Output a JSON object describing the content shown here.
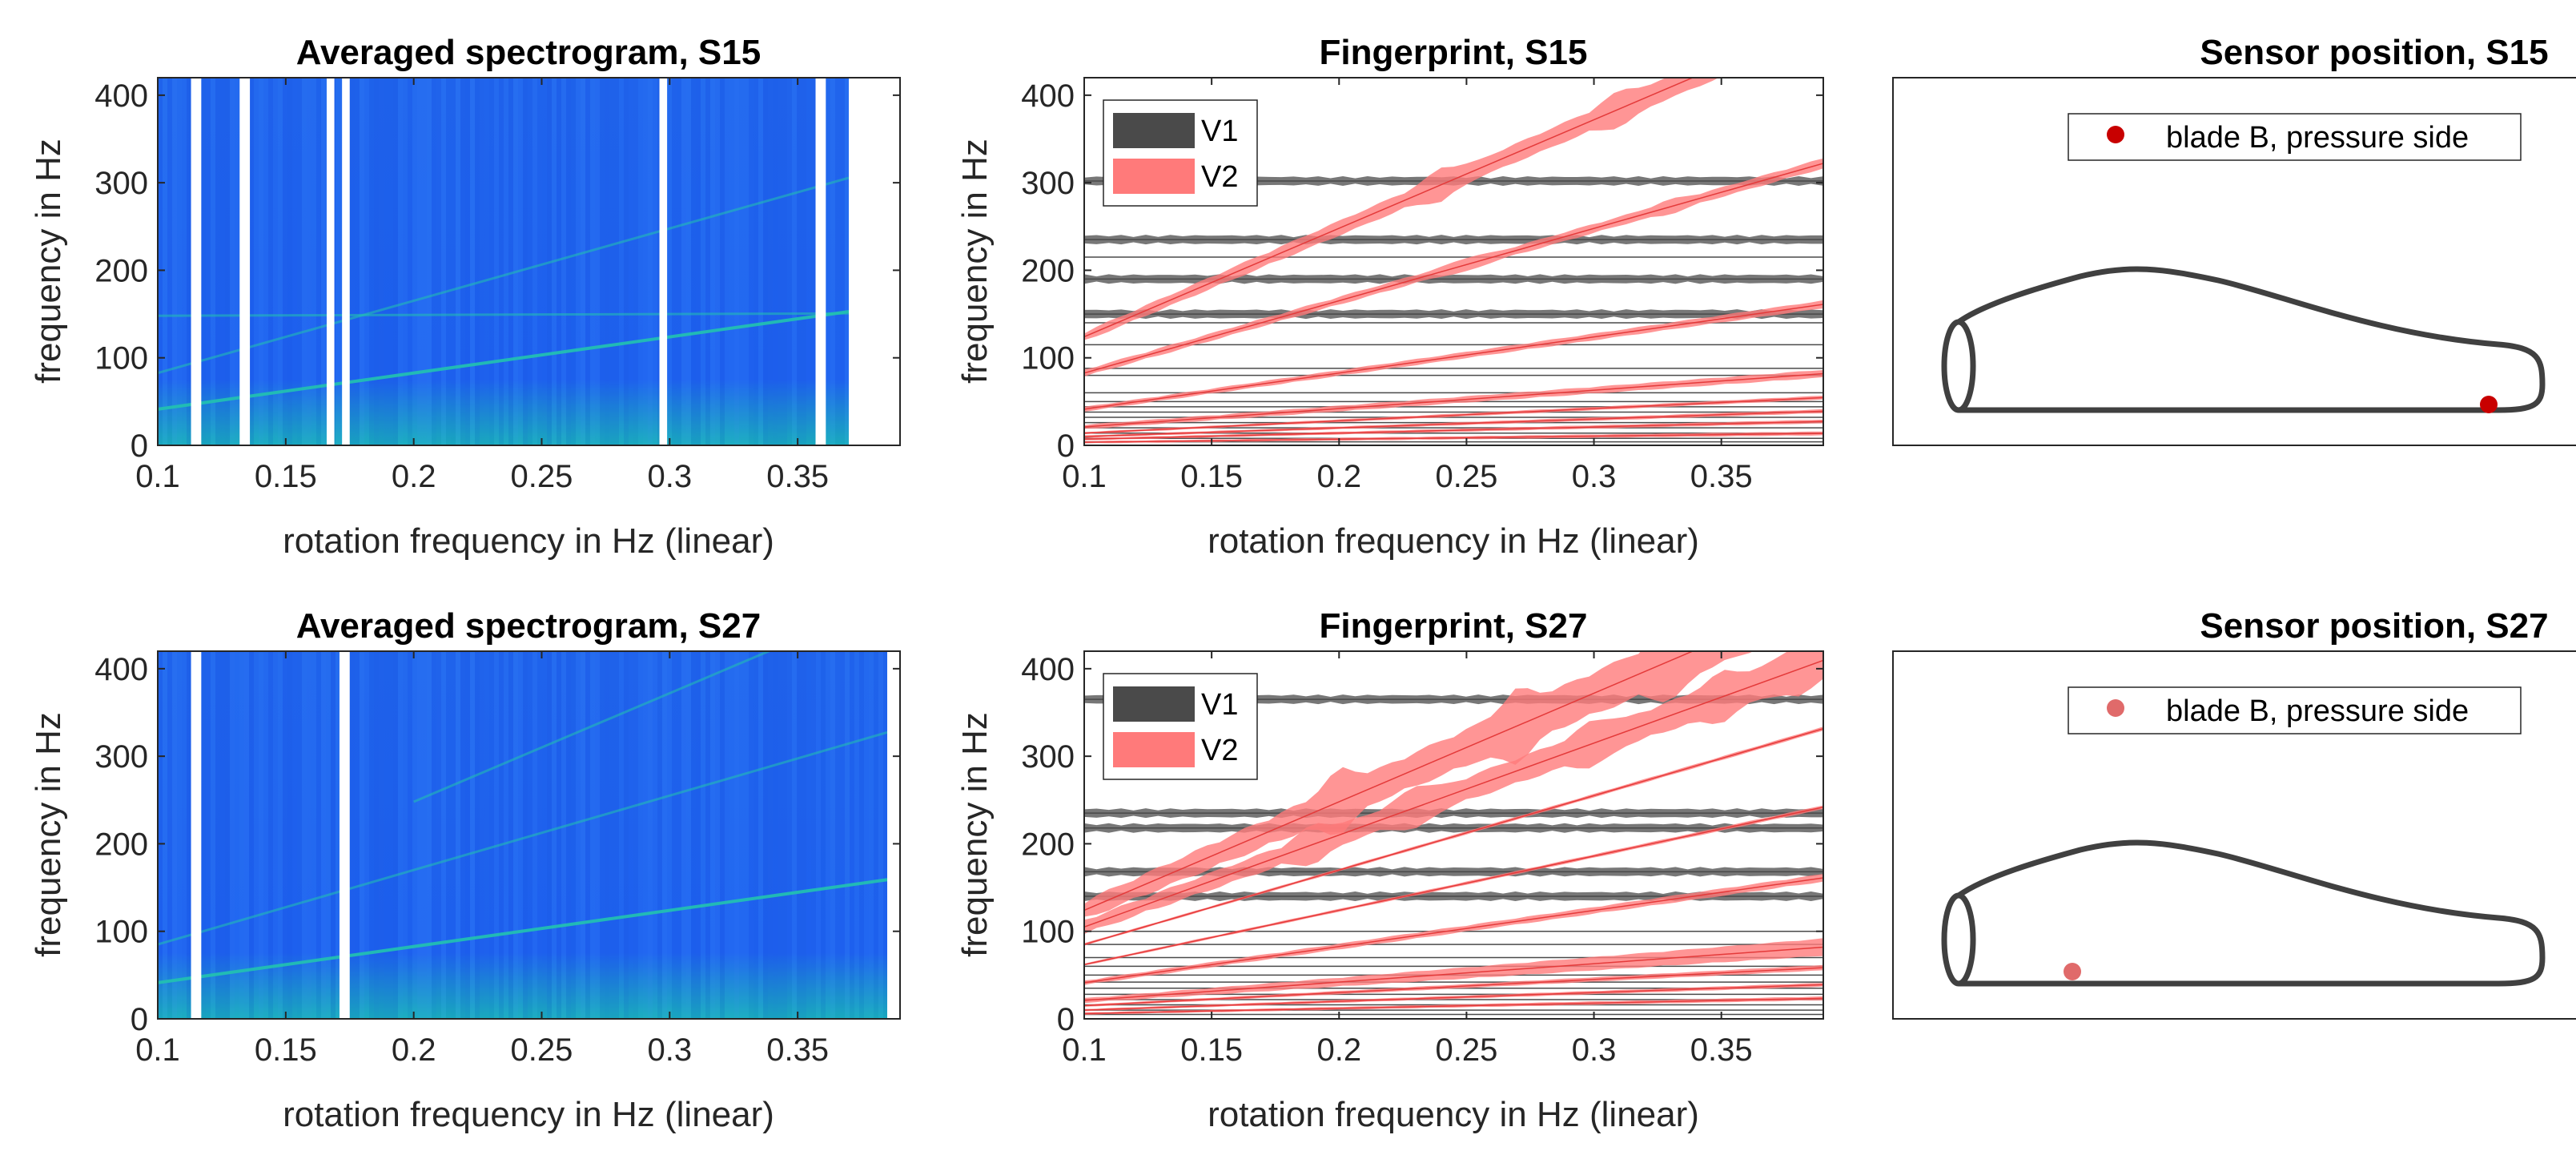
{
  "figure": {
    "colors": {
      "spec_bg": "#1f63f0",
      "spec_bg_bottom": "#1aa2c8",
      "spec_line": "#22c3b0",
      "gap": "#ffffff",
      "v1": "#4a4a4a",
      "v2": "#ff7a7a",
      "v2_line": "#e43a3a",
      "sensor_s15": "#c80000",
      "sensor_s27": "#e06a6a",
      "outline": "#404040"
    }
  },
  "chart_data": [
    {
      "id": "spec_s15",
      "type": "heatmap",
      "title": "Averaged spectrogram, S15",
      "xlabel": "rotation frequency in Hz (linear)",
      "ylabel": "frequency in Hz",
      "xlim": [
        0.1,
        0.39
      ],
      "ylim": [
        0,
        420
      ],
      "xticks": [
        "0.1",
        "0.15",
        "0.2",
        "0.25",
        "0.3",
        "0.35"
      ],
      "yticks": [
        "0",
        "100",
        "200",
        "300",
        "400"
      ],
      "data_x_range": [
        0.1,
        0.37
      ],
      "gaps": [
        [
          0.113,
          0.117
        ],
        [
          0.132,
          0.136
        ],
        [
          0.166,
          0.169
        ],
        [
          0.172,
          0.175
        ],
        [
          0.296,
          0.299
        ],
        [
          0.357,
          0.361
        ]
      ],
      "ridges": [
        {
          "x0": 0.1,
          "x1": 0.37,
          "slope": 413,
          "intercept": 0
        },
        {
          "x0": 0.1,
          "x1": 0.37,
          "slope": 826,
          "intercept": 0
        },
        {
          "x0": 0.1,
          "x1": 0.37,
          "slope": 10,
          "intercept": 147
        }
      ]
    },
    {
      "id": "fp_s15",
      "type": "line",
      "title": "Fingerprint, S15",
      "xlabel": "rotation frequency in Hz (linear)",
      "ylabel": "frequency in Hz",
      "xlim": [
        0.1,
        0.39
      ],
      "ylim": [
        0,
        420
      ],
      "xticks": [
        "0.1",
        "0.15",
        "0.2",
        "0.25",
        "0.3",
        "0.35"
      ],
      "yticks": [
        "0",
        "100",
        "200",
        "300",
        "400"
      ],
      "legend": [
        "V1",
        "V2"
      ],
      "legend_position": "top-left",
      "v1_lines": [
        302,
        235,
        215,
        190,
        150,
        140,
        115,
        88,
        80,
        60,
        50,
        44,
        38,
        32,
        26,
        20,
        14,
        8,
        4
      ],
      "v1_thick": [
        302,
        235,
        190,
        150
      ],
      "v2_lines": [
        {
          "slope": 1240,
          "width": [
            4,
            14
          ],
          "bumps": [
            0.24,
            0.31
          ]
        },
        {
          "slope": 826,
          "width": [
            3,
            5
          ],
          "bumps": [
            0.25,
            0.33
          ]
        },
        {
          "slope": 413,
          "width": [
            2,
            4
          ],
          "bumps": []
        },
        {
          "slope": 210,
          "width": [
            2,
            4
          ],
          "bumps": []
        },
        {
          "slope": 140,
          "width": [
            1,
            2
          ],
          "bumps": []
        },
        {
          "slope": 100,
          "width": [
            1,
            2
          ],
          "bumps": []
        },
        {
          "slope": 70,
          "width": [
            1,
            2
          ],
          "bumps": []
        },
        {
          "slope": 35,
          "width": [
            1,
            2
          ],
          "bumps": []
        }
      ]
    },
    {
      "id": "pos_s15",
      "type": "diagram",
      "title": "Sensor position, S15",
      "legend": [
        "blade B, pressure side"
      ],
      "legend_position": "top-right",
      "sensor": {
        "chord_fraction": 0.95,
        "side": "pressure"
      }
    },
    {
      "id": "spec_s27",
      "type": "heatmap",
      "title": "Averaged spectrogram, S27",
      "xlabel": "rotation frequency in Hz (linear)",
      "ylabel": "frequency in Hz",
      "xlim": [
        0.1,
        0.39
      ],
      "ylim": [
        0,
        420
      ],
      "xticks": [
        "0.1",
        "0.15",
        "0.2",
        "0.25",
        "0.3",
        "0.35"
      ],
      "yticks": [
        "0",
        "100",
        "200",
        "300",
        "400"
      ],
      "data_x_range": [
        0.1,
        0.385
      ],
      "gaps": [
        [
          0.113,
          0.117
        ],
        [
          0.171,
          0.175
        ]
      ],
      "ridges": [
        {
          "x0": 0.1,
          "x1": 0.385,
          "slope": 413,
          "intercept": 0
        },
        {
          "x0": 0.1,
          "x1": 0.385,
          "slope": 850,
          "intercept": 0
        },
        {
          "x0": 0.2,
          "x1": 0.385,
          "slope": 1240,
          "intercept": 0
        }
      ]
    },
    {
      "id": "fp_s27",
      "type": "line",
      "title": "Fingerprint, S27",
      "xlabel": "rotation frequency in Hz (linear)",
      "ylabel": "frequency in Hz",
      "xlim": [
        0.1,
        0.39
      ],
      "ylim": [
        0,
        420
      ],
      "xticks": [
        "0.1",
        "0.15",
        "0.2",
        "0.25",
        "0.3",
        "0.35"
      ],
      "yticks": [
        "0",
        "100",
        "200",
        "300",
        "400"
      ],
      "legend": [
        "V1",
        "V2"
      ],
      "legend_position": "top-left",
      "v1_lines": [
        365,
        235,
        218,
        168,
        140,
        100,
        85,
        70,
        60,
        50,
        42,
        35,
        28,
        22,
        16,
        10,
        5
      ],
      "v1_thick": [
        365,
        235,
        218,
        168,
        140
      ],
      "v2_lines": [
        {
          "slope": 1240,
          "width": [
            8,
            30
          ],
          "bumps": [
            0.2,
            0.27,
            0.33
          ]
        },
        {
          "slope": 1050,
          "width": [
            6,
            18
          ],
          "bumps": [
            0.19,
            0.23,
            0.3,
            0.35,
            0.38
          ]
        },
        {
          "slope": 850,
          "width": [
            1,
            2
          ],
          "bumps": []
        },
        {
          "slope": 620,
          "width": [
            1,
            2
          ],
          "bumps": []
        },
        {
          "slope": 413,
          "width": [
            2,
            4
          ],
          "bumps": []
        },
        {
          "slope": 210,
          "width": [
            2,
            10
          ],
          "bumps": []
        },
        {
          "slope": 150,
          "width": [
            1,
            3
          ],
          "bumps": []
        },
        {
          "slope": 100,
          "width": [
            1,
            2
          ],
          "bumps": []
        },
        {
          "slope": 60,
          "width": [
            1,
            2
          ],
          "bumps": []
        }
      ]
    },
    {
      "id": "pos_s27",
      "type": "diagram",
      "title": "Sensor position, S27",
      "legend": [
        "blade B, pressure side"
      ],
      "legend_position": "top-right",
      "sensor": {
        "chord_fraction": 0.2,
        "side": "pressure-near-root"
      }
    }
  ]
}
